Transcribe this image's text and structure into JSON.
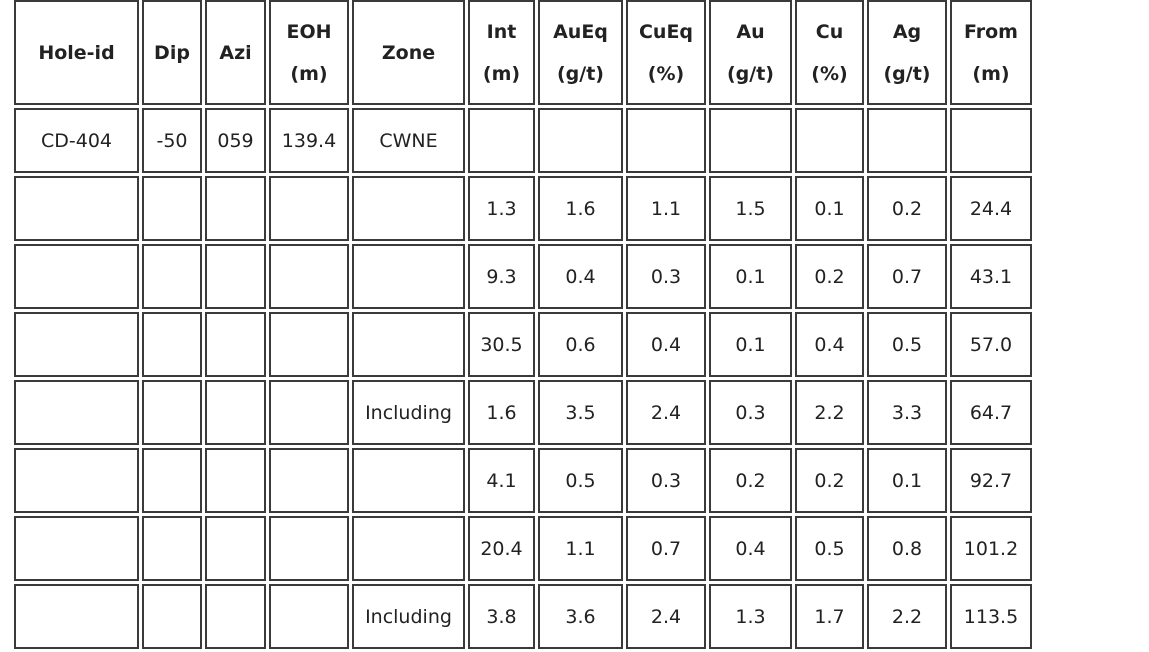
{
  "table": {
    "header": [
      [
        "Hole-id"
      ],
      [
        "Dip"
      ],
      [
        "Azi"
      ],
      [
        "EOH",
        "(m)"
      ],
      [
        "Zone"
      ],
      [
        "Int",
        "(m)"
      ],
      [
        "AuEq",
        "(g/t)"
      ],
      [
        "CuEq",
        "(%)"
      ],
      [
        "Au",
        "(g/t)"
      ],
      [
        "Cu",
        "(%)"
      ],
      [
        "Ag",
        "(g/t)"
      ],
      [
        "From",
        "(m)"
      ]
    ],
    "rows": [
      [
        "CD-404",
        "-50",
        "059",
        "139.4",
        "CWNE",
        null,
        null,
        null,
        null,
        null,
        null,
        null
      ],
      [
        null,
        null,
        null,
        null,
        null,
        "1.3",
        "1.6",
        "1.1",
        "1.5",
        "0.1",
        "0.2",
        "24.4"
      ],
      [
        null,
        null,
        null,
        null,
        null,
        "9.3",
        "0.4",
        "0.3",
        "0.1",
        "0.2",
        "0.7",
        "43.1"
      ],
      [
        null,
        null,
        null,
        null,
        null,
        "30.5",
        "0.6",
        "0.4",
        "0.1",
        "0.4",
        "0.5",
        "57.0"
      ],
      [
        null,
        null,
        null,
        null,
        "Including",
        "1.6",
        "3.5",
        "2.4",
        "0.3",
        "2.2",
        "3.3",
        "64.7"
      ],
      [
        null,
        null,
        null,
        null,
        null,
        "4.1",
        "0.5",
        "0.3",
        "0.2",
        "0.2",
        "0.1",
        "92.7"
      ],
      [
        null,
        null,
        null,
        null,
        null,
        "20.4",
        "1.1",
        "0.7",
        "0.4",
        "0.5",
        "0.8",
        "101.2"
      ],
      [
        null,
        null,
        null,
        null,
        "Including",
        "3.8",
        "3.6",
        "2.4",
        "1.3",
        "1.7",
        "2.2",
        "113.5"
      ]
    ]
  }
}
